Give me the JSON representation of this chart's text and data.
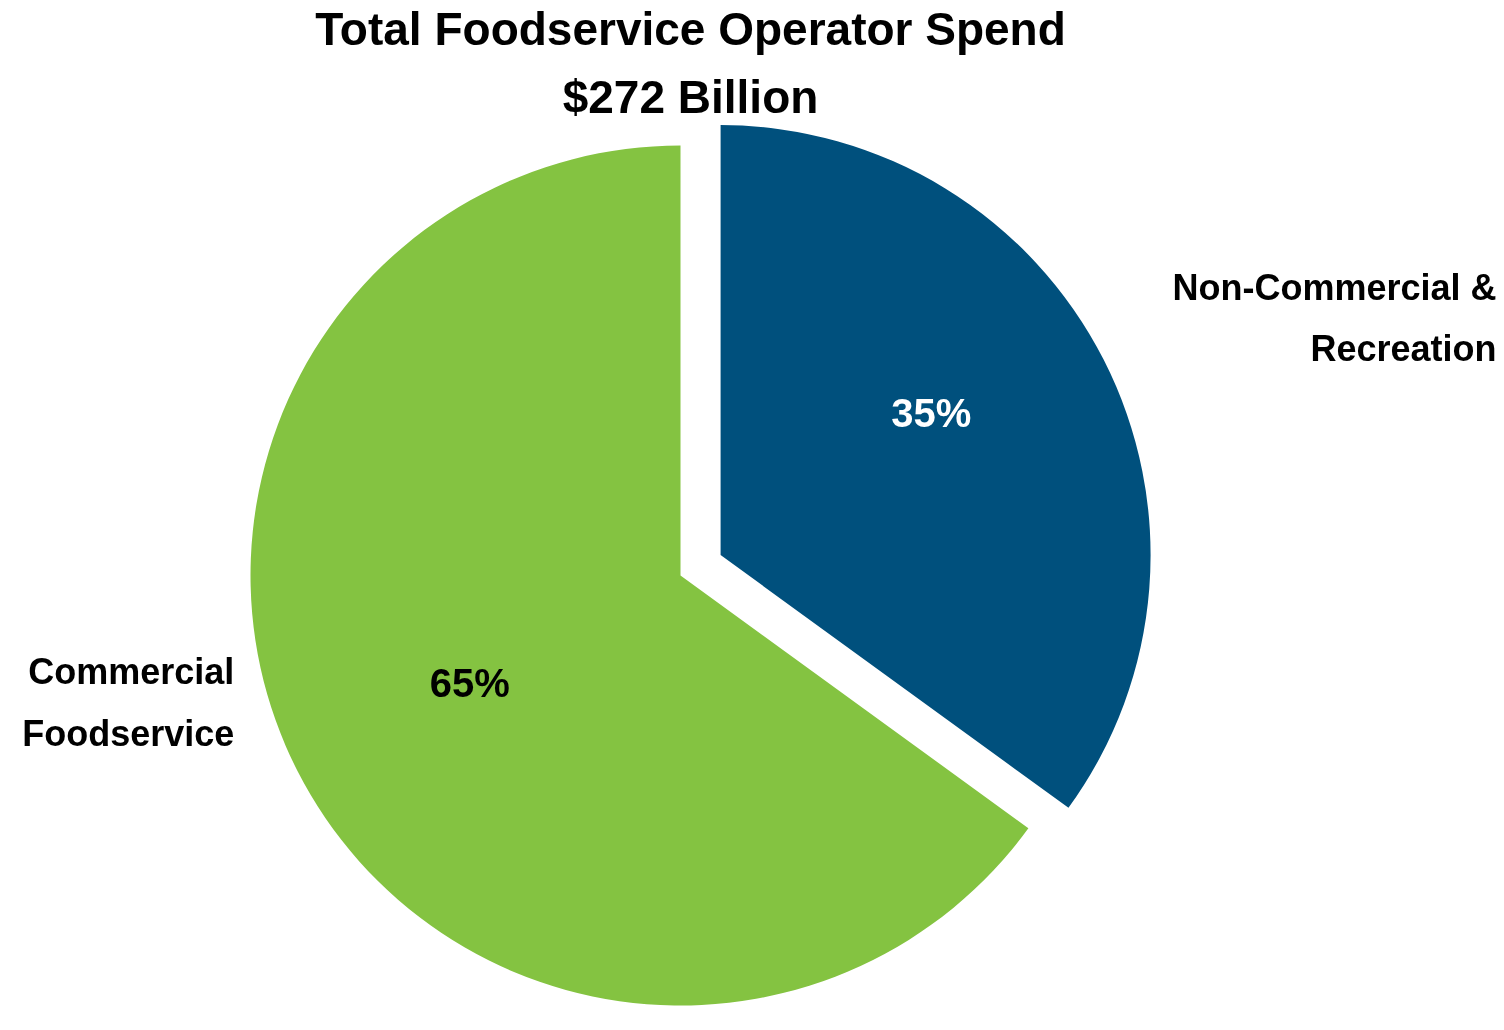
{
  "chart_data": {
    "type": "pie",
    "title": "Total Foodservice Operator Spend",
    "subtitle": "$272 Billion",
    "categories": [
      "Non-Commercial & Recreation",
      "Commercial Foodservice"
    ],
    "values": [
      35,
      65
    ],
    "colors": [
      "#00507d",
      "#84c341"
    ],
    "value_labels": [
      "35%",
      "65%"
    ]
  }
}
